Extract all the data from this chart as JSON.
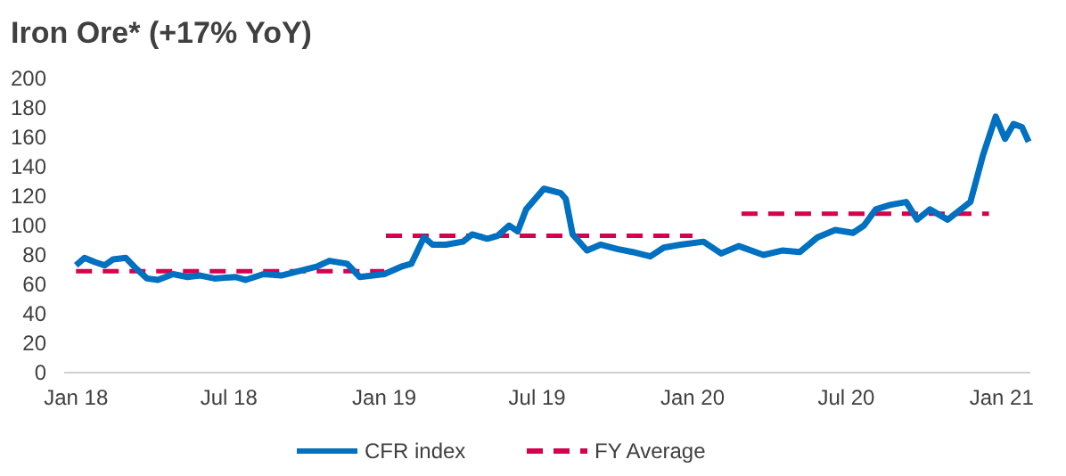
{
  "chart_data": {
    "type": "line",
    "title": "Iron Ore* (+17% YoY)",
    "xlim": [
      "2017-12-18",
      "2021-02-04"
    ],
    "xticks": [
      {
        "value": "2018-01-01",
        "label": "Jan 18"
      },
      {
        "value": "2018-07-01",
        "label": "Jul 18"
      },
      {
        "value": "2019-01-01",
        "label": "Jan 19"
      },
      {
        "value": "2019-07-01",
        "label": "Jul 19"
      },
      {
        "value": "2020-01-01",
        "label": "Jan 20"
      },
      {
        "value": "2020-07-01",
        "label": "Jul 20"
      },
      {
        "value": "2021-01-01",
        "label": "Jan 21"
      }
    ],
    "ylim": [
      0,
      200
    ],
    "yticks": [
      0,
      20,
      40,
      60,
      80,
      100,
      120,
      140,
      160,
      180,
      200
    ],
    "grid": false,
    "legend": "bottom",
    "series": [
      {
        "name": "CFR index",
        "color": "#0070c0",
        "line_style": "solid",
        "x": [
          "2018-01-01",
          "2018-01-11",
          "2018-01-24",
          "2018-02-04",
          "2018-02-14",
          "2018-03-01",
          "2018-03-11",
          "2018-03-26",
          "2018-04-08",
          "2018-04-26",
          "2018-05-13",
          "2018-05-28",
          "2018-06-14",
          "2018-07-09",
          "2018-07-21",
          "2018-08-11",
          "2018-09-01",
          "2018-09-22",
          "2018-10-13",
          "2018-10-28",
          "2018-11-18",
          "2018-12-03",
          "2019-01-01",
          "2019-01-21",
          "2019-02-02",
          "2019-02-17",
          "2019-02-27",
          "2019-03-15",
          "2019-04-04",
          "2019-04-15",
          "2019-05-03",
          "2019-05-15",
          "2019-05-29",
          "2019-06-08",
          "2019-06-18",
          "2019-07-03",
          "2019-07-09",
          "2019-07-29",
          "2019-08-04",
          "2019-08-12",
          "2019-08-29",
          "2019-09-14",
          "2019-10-04",
          "2019-10-22",
          "2019-11-12",
          "2019-11-28",
          "2019-12-18",
          "2020-01-14",
          "2020-02-04",
          "2020-02-25",
          "2020-03-25",
          "2020-04-16",
          "2020-05-07",
          "2020-05-28",
          "2020-06-18",
          "2020-07-09",
          "2020-07-22",
          "2020-08-05",
          "2020-08-22",
          "2020-09-10",
          "2020-09-23",
          "2020-10-08",
          "2020-10-29",
          "2020-11-25",
          "2020-12-10",
          "2020-12-25",
          "2021-01-05",
          "2021-01-15",
          "2021-01-25",
          "2021-02-02"
        ],
        "values": [
          73,
          78,
          75,
          73,
          77,
          78,
          72,
          64,
          63,
          67,
          65,
          66,
          64,
          65,
          63,
          67,
          66,
          69,
          72,
          76,
          74,
          65,
          67,
          72,
          74,
          92,
          87,
          87,
          89,
          94,
          91,
          93,
          100,
          96,
          111,
          121,
          125,
          122,
          118,
          94,
          83,
          87,
          84,
          82,
          79,
          85,
          87,
          89,
          81,
          86,
          80,
          83,
          82,
          92,
          97,
          95,
          100,
          111,
          114,
          116,
          104,
          111,
          104,
          116,
          148,
          174,
          159,
          169,
          167,
          157
        ]
      },
      {
        "name": "FY Average",
        "color": "#d6004c",
        "line_style": "dashed",
        "x": [
          "2018-01-01",
          "2019-01-01",
          "2019-01-02",
          "2019-01-03",
          "2020-01-01",
          "2020-01-02",
          "2020-02-28",
          "2020-12-17"
        ],
        "values": [
          69,
          69,
          null,
          93,
          93,
          null,
          108,
          108
        ]
      }
    ]
  }
}
